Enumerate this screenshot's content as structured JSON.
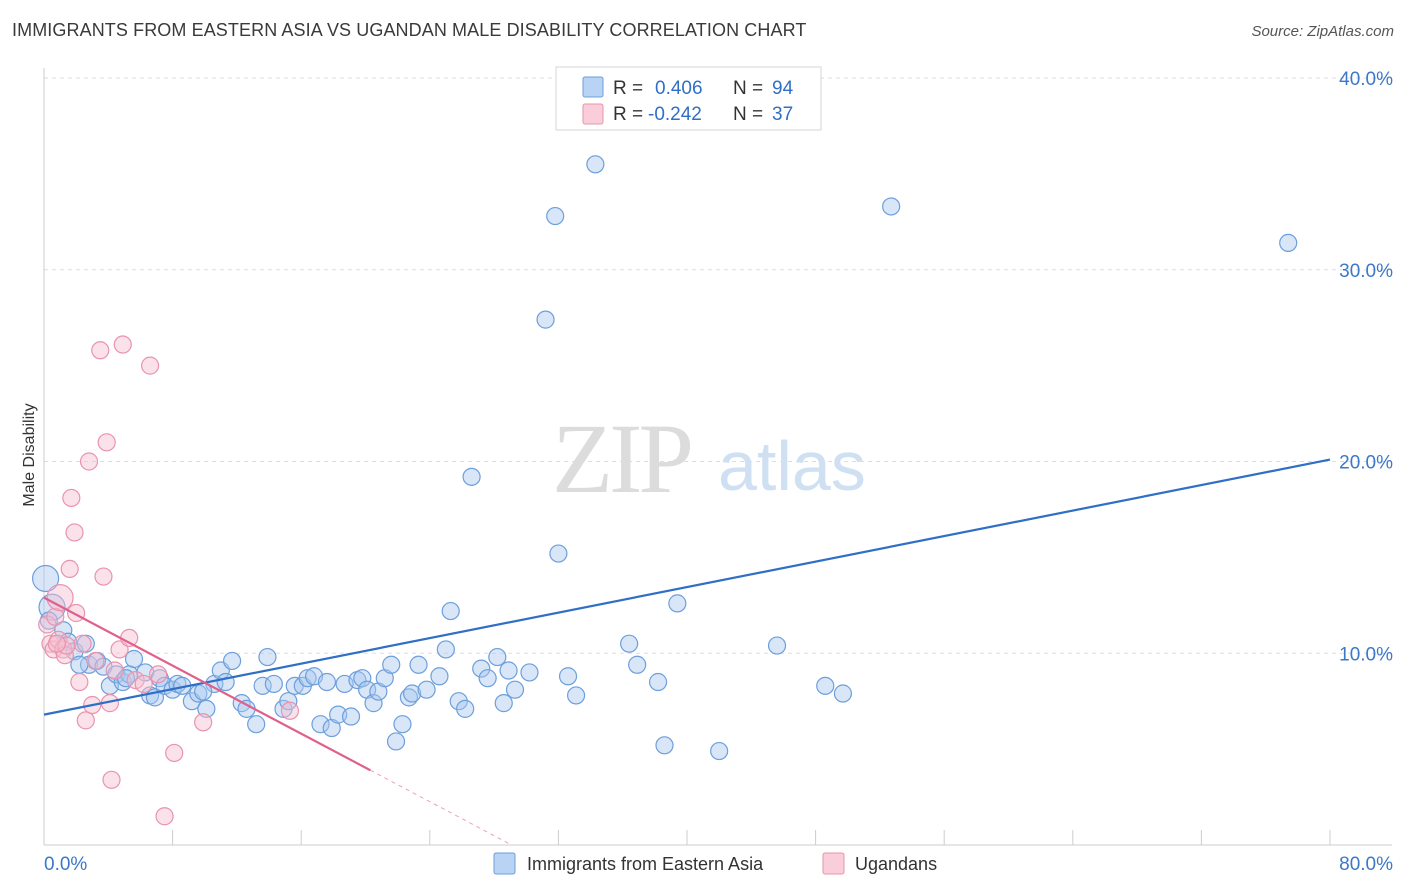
{
  "header": {
    "title": "IMMIGRANTS FROM EASTERN ASIA VS UGANDAN MALE DISABILITY CORRELATION CHART",
    "source": "Source: ZipAtlas.com"
  },
  "watermark": {
    "zip": "ZIP",
    "atlas": "atlas"
  },
  "colors": {
    "blue_fill": "#a9c8ef",
    "blue_stroke": "#6c9fdc",
    "blue_line": "#2f6fc6",
    "pink_fill": "#f6bfd0",
    "pink_stroke": "#e993ae",
    "pink_line": "#e0608c",
    "grid": "#dddddd",
    "tick_text": "#3b78c8"
  },
  "legend": {
    "rows": [
      {
        "r_label": "R = ",
        "r_value": "0.406",
        "n_label": "N = ",
        "n_value": "94"
      },
      {
        "r_label": "R = ",
        "r_value": "-0.242",
        "n_label": "N = ",
        "n_value": "37"
      }
    ]
  },
  "chart_data": {
    "type": "scatter",
    "title": "IMMIGRANTS FROM EASTERN ASIA VS UGANDAN MALE DISABILITY CORRELATION CHART",
    "xlabel": "",
    "ylabel": "Male Disability",
    "xlim": [
      0,
      80
    ],
    "ylim": [
      0,
      40
    ],
    "x_tick_labels": [
      {
        "value": 0,
        "label": "0.0%"
      },
      {
        "value": 80,
        "label": "80.0%"
      }
    ],
    "y_tick_labels": [
      {
        "value": 10,
        "label": "10.0%"
      },
      {
        "value": 20,
        "label": "20.0%"
      },
      {
        "value": 30,
        "label": "30.0%"
      },
      {
        "value": 40,
        "label": "40.0%"
      }
    ],
    "x_minor_ticks": [
      0,
      8,
      16,
      24,
      32,
      40,
      48,
      56,
      64,
      72,
      80
    ],
    "series": [
      {
        "name": "Immigrants from Eastern Asia",
        "color": "blue",
        "trend": {
          "x0": 0,
          "y0": 6.8,
          "x1": 80,
          "y1": 20.1
        },
        "points": [
          [
            0.1,
            13.9
          ],
          [
            0.5,
            12.4
          ],
          [
            1.2,
            11.2
          ],
          [
            1.5,
            10.6
          ],
          [
            1.9,
            10.1
          ],
          [
            2.6,
            10.5
          ],
          [
            2.8,
            9.4
          ],
          [
            3.3,
            9.6
          ],
          [
            3.7,
            9.3
          ],
          [
            4.1,
            8.3
          ],
          [
            4.5,
            8.9
          ],
          [
            4.9,
            8.5
          ],
          [
            5.3,
            8.9
          ],
          [
            5.6,
            9.7
          ],
          [
            6.3,
            9.0
          ],
          [
            6.6,
            7.8
          ],
          [
            6.9,
            7.7
          ],
          [
            7.2,
            8.7
          ],
          [
            7.5,
            8.3
          ],
          [
            8.0,
            8.1
          ],
          [
            8.3,
            8.4
          ],
          [
            8.6,
            8.3
          ],
          [
            9.2,
            7.5
          ],
          [
            9.6,
            7.9
          ],
          [
            10.1,
            7.1
          ],
          [
            10.6,
            8.4
          ],
          [
            11.0,
            9.1
          ],
          [
            11.3,
            8.5
          ],
          [
            11.7,
            9.6
          ],
          [
            12.3,
            7.4
          ],
          [
            12.6,
            7.1
          ],
          [
            13.2,
            6.3
          ],
          [
            13.6,
            8.3
          ],
          [
            13.9,
            9.8
          ],
          [
            14.3,
            8.4
          ],
          [
            14.9,
            7.1
          ],
          [
            15.2,
            7.5
          ],
          [
            15.6,
            8.3
          ],
          [
            16.1,
            8.3
          ],
          [
            16.4,
            8.7
          ],
          [
            16.8,
            8.8
          ],
          [
            17.2,
            6.3
          ],
          [
            17.6,
            8.5
          ],
          [
            17.9,
            6.1
          ],
          [
            18.3,
            6.8
          ],
          [
            18.7,
            8.4
          ],
          [
            19.1,
            6.7
          ],
          [
            19.5,
            8.6
          ],
          [
            19.8,
            8.7
          ],
          [
            20.1,
            8.1
          ],
          [
            20.5,
            7.4
          ],
          [
            20.8,
            8.0
          ],
          [
            21.2,
            8.7
          ],
          [
            21.6,
            9.4
          ],
          [
            21.9,
            5.4
          ],
          [
            22.3,
            6.3
          ],
          [
            22.7,
            7.7
          ],
          [
            22.9,
            7.9
          ],
          [
            23.3,
            9.4
          ],
          [
            23.8,
            8.1
          ],
          [
            24.6,
            8.8
          ],
          [
            25.0,
            10.2
          ],
          [
            25.3,
            12.2
          ],
          [
            25.8,
            7.5
          ],
          [
            26.2,
            7.1
          ],
          [
            26.6,
            19.2
          ],
          [
            27.2,
            9.2
          ],
          [
            27.6,
            8.7
          ],
          [
            28.2,
            9.8
          ],
          [
            28.6,
            7.4
          ],
          [
            28.9,
            9.1
          ],
          [
            29.3,
            8.1
          ],
          [
            30.2,
            9.0
          ],
          [
            31.2,
            27.4
          ],
          [
            31.8,
            32.8
          ],
          [
            32.0,
            15.2
          ],
          [
            32.6,
            8.8
          ],
          [
            33.1,
            7.8
          ],
          [
            34.3,
            35.5
          ],
          [
            36.4,
            10.5
          ],
          [
            36.9,
            9.4
          ],
          [
            38.2,
            8.5
          ],
          [
            38.6,
            5.2
          ],
          [
            39.4,
            12.6
          ],
          [
            42.0,
            4.9
          ],
          [
            45.6,
            10.4
          ],
          [
            48.6,
            8.3
          ],
          [
            49.7,
            7.9
          ],
          [
            52.7,
            33.3
          ],
          [
            77.4,
            31.4
          ],
          [
            0.3,
            11.7
          ],
          [
            2.2,
            9.4
          ],
          [
            5.1,
            8.7
          ],
          [
            9.9,
            8.0
          ]
        ]
      },
      {
        "name": "Ugandans",
        "color": "pink",
        "trend": {
          "x0": 0,
          "y0": 12.9,
          "x1": 20.3,
          "y1": 3.9,
          "dash_to_x": 34,
          "dash_to_y": -2.1
        },
        "points": [
          [
            0.2,
            11.5
          ],
          [
            0.4,
            10.5
          ],
          [
            0.6,
            10.2
          ],
          [
            0.7,
            11.9
          ],
          [
            0.9,
            10.7
          ],
          [
            1.0,
            12.9
          ],
          [
            1.2,
            10.2
          ],
          [
            1.3,
            9.9
          ],
          [
            1.4,
            10.4
          ],
          [
            1.6,
            14.4
          ],
          [
            1.7,
            18.1
          ],
          [
            1.9,
            16.3
          ],
          [
            2.0,
            12.1
          ],
          [
            2.2,
            8.5
          ],
          [
            2.4,
            10.5
          ],
          [
            2.6,
            6.5
          ],
          [
            2.8,
            20.0
          ],
          [
            3.0,
            7.3
          ],
          [
            3.2,
            9.6
          ],
          [
            3.5,
            25.8
          ],
          [
            3.7,
            14.0
          ],
          [
            3.9,
            21.0
          ],
          [
            4.1,
            7.4
          ],
          [
            4.4,
            9.1
          ],
          [
            4.7,
            10.2
          ],
          [
            4.9,
            26.1
          ],
          [
            5.3,
            10.8
          ],
          [
            5.7,
            8.6
          ],
          [
            6.2,
            8.4
          ],
          [
            6.6,
            25.0
          ],
          [
            7.1,
            8.9
          ],
          [
            7.5,
            1.5
          ],
          [
            8.1,
            4.8
          ],
          [
            9.9,
            6.4
          ],
          [
            15.3,
            7.0
          ],
          [
            0.8,
            10.5
          ],
          [
            4.2,
            3.4
          ]
        ]
      }
    ],
    "legend_position": "top-center",
    "bottom_legend": [
      "Immigrants from Eastern Asia",
      "Ugandans"
    ]
  }
}
